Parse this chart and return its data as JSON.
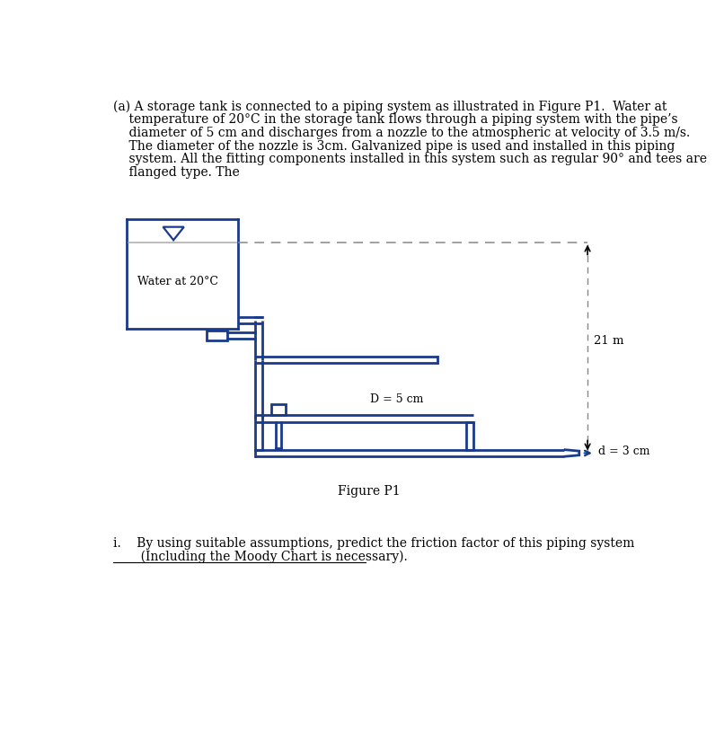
{
  "bg_color": "#ffffff",
  "pipe_color": "#1a3a8c",
  "pipe_lw": 2.0,
  "dashed_color": "#888888",
  "text_color": "#000000",
  "title_text": "Figure P1",
  "label_D": "D = 5 cm",
  "label_d": "d = 3 cm",
  "label_21m": "21 m",
  "label_water": "Water at 20°C",
  "fontsize_body": 10,
  "fontsize_label": 9,
  "fontsize_title": 10,
  "paragraph_lines": [
    "(a) A storage tank is connected to a piping system as illustrated in Figure P1.  Water at",
    "    temperature of 20°C in the storage tank flows through a piping system with the pipe’s",
    "    diameter of 5 cm and discharges from a nozzle to the atmospheric at velocity of 3.5 m/s.",
    "    The diameter of the nozzle is 3cm. Galvanized pipe is used and installed in this piping",
    "    system. All the fitting components installed in this system such as regular 90° and tees are",
    "    flanged type. The"
  ],
  "question_lines": [
    "i.    By using suitable assumptions, predict the friction factor of this piping system",
    "       (Including the Moody Chart is necessary)."
  ]
}
